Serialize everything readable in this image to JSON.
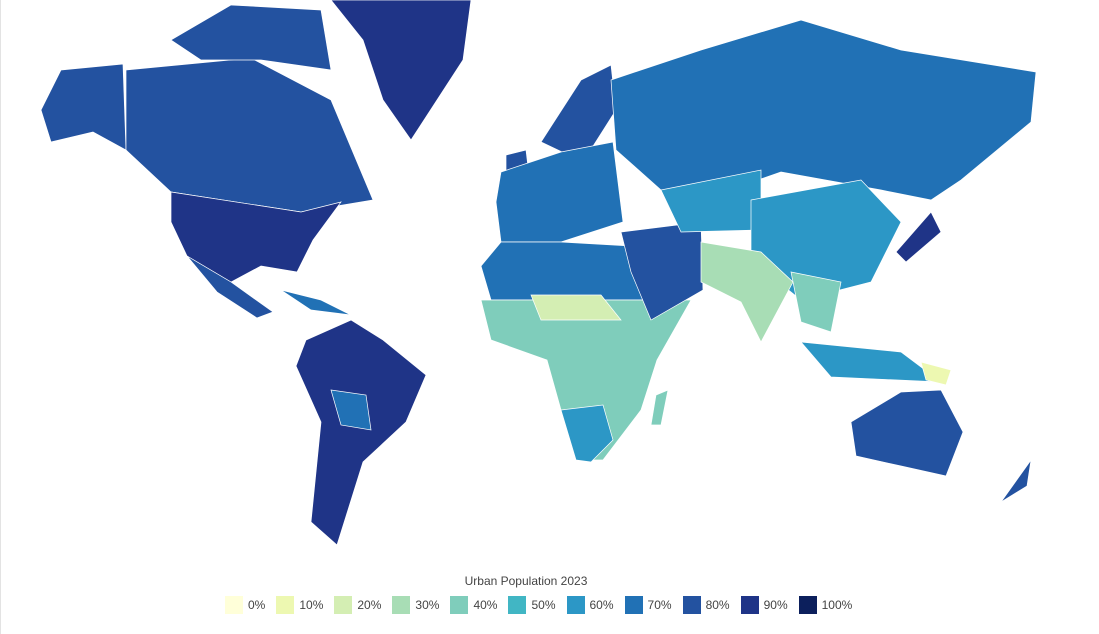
{
  "legend": {
    "title": "Urban Population 2023",
    "items": [
      {
        "label": "0%",
        "color": "#ffffd9"
      },
      {
        "label": "10%",
        "color": "#edf8b1"
      },
      {
        "label": "20%",
        "color": "#d4eeb3"
      },
      {
        "label": "30%",
        "color": "#a8ddb5"
      },
      {
        "label": "40%",
        "color": "#7fcdbb"
      },
      {
        "label": "50%",
        "color": "#41b6c4"
      },
      {
        "label": "60%",
        "color": "#2c97c6"
      },
      {
        "label": "70%",
        "color": "#2171b5"
      },
      {
        "label": "80%",
        "color": "#2352a0"
      },
      {
        "label": "90%",
        "color": "#1f3487"
      },
      {
        "label": "100%",
        "color": "#0c1f5c"
      }
    ]
  }
}
